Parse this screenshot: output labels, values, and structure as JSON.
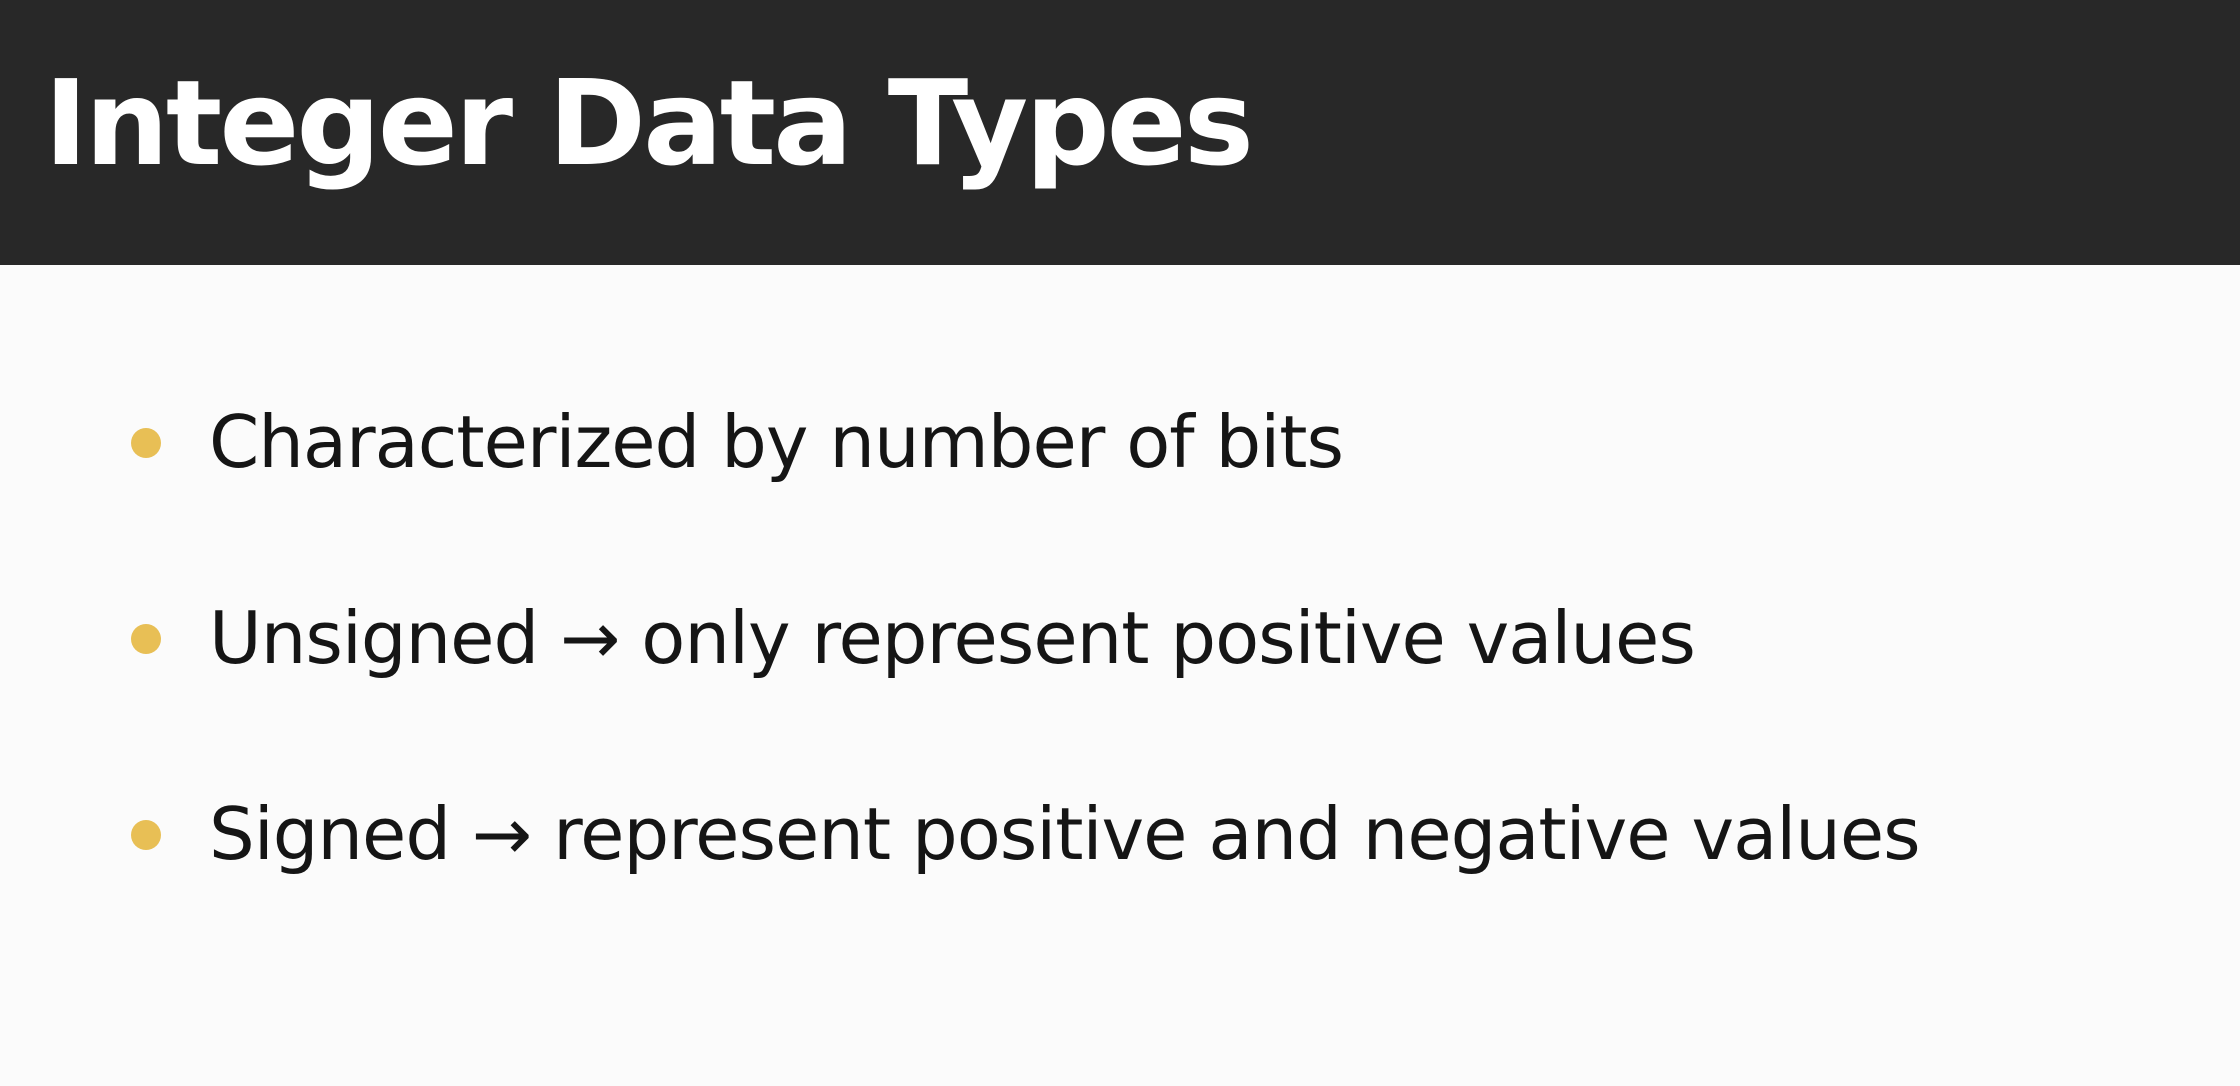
{
  "slide": {
    "title": "Integer Data Types",
    "bullets": [
      {
        "text": "Characterized by number of bits"
      },
      {
        "text": "Unsigned → only represent positive values"
      },
      {
        "text": "Signed → represent positive and negative values"
      }
    ]
  },
  "colors": {
    "title_bar_background": "#282828",
    "title_text": "#ffffff",
    "slide_background": "#fbfbfb",
    "bullet_accent": "#e8bf55",
    "body_text": "#151515"
  }
}
